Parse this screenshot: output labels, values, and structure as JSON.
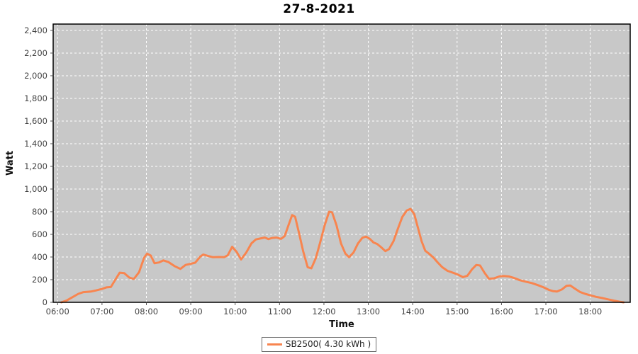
{
  "chart_data": {
    "type": "line",
    "title": "27-8-2021",
    "xlabel": "Time",
    "ylabel": "Watt",
    "x_tick_labels": [
      "06:00",
      "07:00",
      "08:00",
      "09:00",
      "10:00",
      "11:00",
      "12:00",
      "13:00",
      "14:00",
      "15:00",
      "16:00",
      "17:00",
      "18:00"
    ],
    "y_tick_step": 200,
    "y_tick_max": 2400,
    "xlim_minutes": [
      354,
      1134
    ],
    "ylim": [
      0,
      2456
    ],
    "grid": {
      "color": "#ffffff",
      "style": "dashed",
      "enabled": true
    },
    "plot_bg": "#c8c8c8",
    "plot_border": "#000000",
    "tick_label_color": "#444444",
    "axis_label_color": "#111111",
    "legend": {
      "label": "SB2500( 4.30 kWh )",
      "position": "bottom-center"
    },
    "series": [
      {
        "name": "SB2500",
        "color": "#f8854f",
        "points": [
          [
            "06:05",
            0
          ],
          [
            "06:12",
            15
          ],
          [
            "06:20",
            45
          ],
          [
            "06:28",
            75
          ],
          [
            "06:35",
            90
          ],
          [
            "06:45",
            95
          ],
          [
            "06:52",
            105
          ],
          [
            "07:00",
            118
          ],
          [
            "07:06",
            132
          ],
          [
            "07:12",
            135
          ],
          [
            "07:18",
            200
          ],
          [
            "07:24",
            262
          ],
          [
            "07:30",
            258
          ],
          [
            "07:37",
            218
          ],
          [
            "07:43",
            206
          ],
          [
            "07:50",
            265
          ],
          [
            "07:57",
            395
          ],
          [
            "08:01",
            430
          ],
          [
            "08:06",
            412
          ],
          [
            "08:11",
            345
          ],
          [
            "08:17",
            352
          ],
          [
            "08:23",
            370
          ],
          [
            "08:30",
            355
          ],
          [
            "08:38",
            320
          ],
          [
            "08:46",
            295
          ],
          [
            "08:53",
            330
          ],
          [
            "09:00",
            340
          ],
          [
            "09:06",
            350
          ],
          [
            "09:13",
            405
          ],
          [
            "09:17",
            422
          ],
          [
            "09:23",
            410
          ],
          [
            "09:30",
            398
          ],
          [
            "09:38",
            400
          ],
          [
            "09:45",
            398
          ],
          [
            "09:50",
            415
          ],
          [
            "09:56",
            490
          ],
          [
            "10:02",
            445
          ],
          [
            "10:08",
            378
          ],
          [
            "10:15",
            440
          ],
          [
            "10:22",
            520
          ],
          [
            "10:28",
            555
          ],
          [
            "10:35",
            565
          ],
          [
            "10:40",
            572
          ],
          [
            "10:45",
            558
          ],
          [
            "10:50",
            568
          ],
          [
            "10:56",
            572
          ],
          [
            "11:02",
            560
          ],
          [
            "11:07",
            585
          ],
          [
            "11:12",
            680
          ],
          [
            "11:17",
            770
          ],
          [
            "11:21",
            755
          ],
          [
            "11:26",
            620
          ],
          [
            "11:32",
            450
          ],
          [
            "11:38",
            310
          ],
          [
            "11:43",
            300
          ],
          [
            "11:49",
            390
          ],
          [
            "11:55",
            530
          ],
          [
            "12:01",
            680
          ],
          [
            "12:07",
            800
          ],
          [
            "12:11",
            795
          ],
          [
            "12:17",
            680
          ],
          [
            "12:23",
            520
          ],
          [
            "12:29",
            430
          ],
          [
            "12:34",
            398
          ],
          [
            "12:40",
            440
          ],
          [
            "12:46",
            520
          ],
          [
            "12:52",
            570
          ],
          [
            "12:57",
            580
          ],
          [
            "13:02",
            560
          ],
          [
            "13:07",
            528
          ],
          [
            "13:12",
            515
          ],
          [
            "13:17",
            488
          ],
          [
            "13:23",
            452
          ],
          [
            "13:28",
            470
          ],
          [
            "13:34",
            540
          ],
          [
            "13:40",
            650
          ],
          [
            "13:46",
            755
          ],
          [
            "13:52",
            810
          ],
          [
            "13:57",
            825
          ],
          [
            "14:02",
            780
          ],
          [
            "14:07",
            660
          ],
          [
            "14:12",
            540
          ],
          [
            "14:17",
            455
          ],
          [
            "14:22",
            430
          ],
          [
            "14:28",
            395
          ],
          [
            "14:34",
            350
          ],
          [
            "14:40",
            310
          ],
          [
            "14:47",
            278
          ],
          [
            "14:55",
            260
          ],
          [
            "15:02",
            242
          ],
          [
            "15:08",
            222
          ],
          [
            "15:14",
            235
          ],
          [
            "15:20",
            290
          ],
          [
            "15:26",
            330
          ],
          [
            "15:31",
            325
          ],
          [
            "15:37",
            262
          ],
          [
            "15:43",
            208
          ],
          [
            "15:50",
            212
          ],
          [
            "15:57",
            228
          ],
          [
            "16:03",
            232
          ],
          [
            "16:10",
            228
          ],
          [
            "16:17",
            215
          ],
          [
            "16:25",
            195
          ],
          [
            "16:33",
            182
          ],
          [
            "16:41",
            170
          ],
          [
            "16:49",
            152
          ],
          [
            "16:57",
            132
          ],
          [
            "17:04",
            110
          ],
          [
            "17:10",
            98
          ],
          [
            "17:15",
            95
          ],
          [
            "17:22",
            115
          ],
          [
            "17:28",
            146
          ],
          [
            "17:33",
            148
          ],
          [
            "17:39",
            122
          ],
          [
            "17:46",
            92
          ],
          [
            "17:53",
            75
          ],
          [
            "18:00",
            62
          ],
          [
            "18:08",
            48
          ],
          [
            "18:16",
            38
          ],
          [
            "18:24",
            26
          ],
          [
            "18:32",
            15
          ],
          [
            "18:40",
            5
          ],
          [
            "18:45",
            0
          ]
        ]
      }
    ]
  }
}
